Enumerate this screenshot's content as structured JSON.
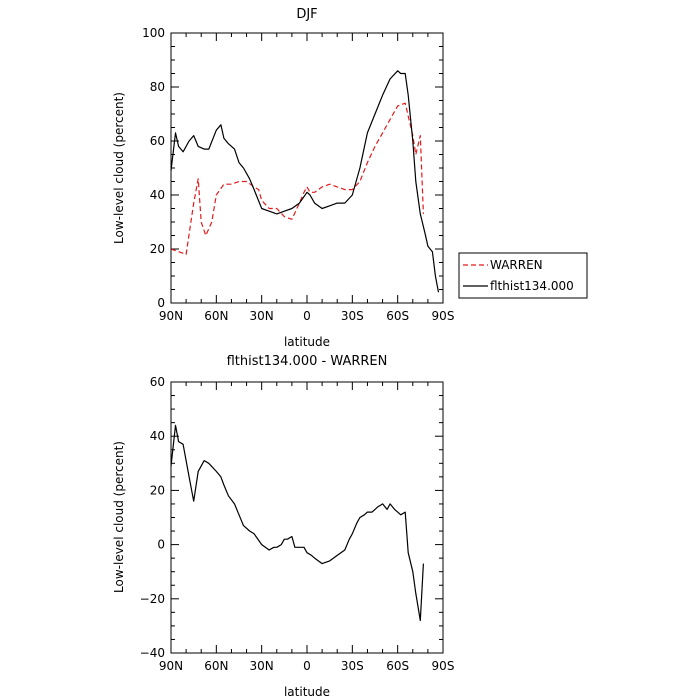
{
  "chart_data": [
    {
      "type": "line",
      "title": "DJF",
      "xlabel": "latitude",
      "ylabel": "Low-level cloud (percent)",
      "xlim": [
        90,
        -90
      ],
      "ylim": [
        0,
        100
      ],
      "xticks": [
        90,
        60,
        30,
        0,
        -30,
        -60,
        -90
      ],
      "xtick_labels": [
        "90N",
        "60N",
        "30N",
        "0",
        "30S",
        "60S",
        "90S"
      ],
      "yticks": [
        0,
        20,
        40,
        60,
        80,
        100
      ],
      "ytick_labels": [
        "0",
        "20",
        "40",
        "60",
        "80",
        "100"
      ],
      "legend": {
        "placement": "outside-right",
        "entries": [
          "WARREN",
          "flthist134.000"
        ]
      },
      "series": [
        {
          "name": "WARREN",
          "color": "#e41a1c",
          "style": "dashed",
          "x": [
            90,
            85,
            80,
            75,
            72,
            70,
            67,
            63,
            60,
            55,
            50,
            45,
            40,
            35,
            32,
            30,
            25,
            20,
            15,
            10,
            5,
            2,
            0,
            -2,
            -5,
            -10,
            -15,
            -20,
            -25,
            -30,
            -35,
            -40,
            -45,
            -50,
            -55,
            -60,
            -65,
            -70,
            -72,
            -75,
            -77
          ],
          "y": [
            20,
            19,
            18,
            37,
            46,
            30,
            25,
            30,
            40,
            44,
            44,
            45,
            45,
            43,
            42,
            38,
            35,
            35,
            32,
            31,
            37,
            41,
            43,
            41,
            41,
            43,
            44,
            43,
            42,
            42,
            45,
            52,
            58,
            63,
            68,
            73,
            74,
            62,
            55,
            62,
            33
          ]
        },
        {
          "name": "flthist134.000",
          "color": "#000000",
          "style": "solid",
          "x": [
            90,
            87,
            85,
            82,
            78,
            75,
            72,
            68,
            65,
            60,
            57,
            55,
            52,
            48,
            45,
            42,
            38,
            35,
            30,
            25,
            20,
            15,
            10,
            5,
            0,
            -2,
            -5,
            -10,
            -15,
            -20,
            -25,
            -30,
            -35,
            -40,
            -45,
            -50,
            -55,
            -60,
            -62,
            -65,
            -67,
            -70,
            -72,
            -75,
            -78,
            -80,
            -83,
            -85,
            -87
          ],
          "y": [
            49,
            63,
            58,
            56,
            60,
            62,
            58,
            57,
            57,
            64,
            66,
            61,
            59,
            57,
            52,
            50,
            46,
            42,
            35,
            34,
            33,
            34,
            35,
            37,
            41,
            40,
            37,
            35,
            36,
            37,
            37,
            40,
            50,
            63,
            70,
            77,
            83,
            86,
            85,
            85,
            77,
            60,
            45,
            33,
            26,
            21,
            19,
            10,
            4
          ]
        }
      ]
    },
    {
      "type": "line",
      "title": "flthist134.000 - WARREN",
      "xlabel": "latitude",
      "ylabel": "Low-level cloud (percent)",
      "xlim": [
        90,
        -90
      ],
      "ylim": [
        -40,
        60
      ],
      "xticks": [
        90,
        60,
        30,
        0,
        -30,
        -60,
        -90
      ],
      "xtick_labels": [
        "90N",
        "60N",
        "30N",
        "0",
        "30S",
        "60S",
        "90S"
      ],
      "yticks": [
        -40,
        -20,
        0,
        20,
        40,
        60
      ],
      "ytick_labels": [
        "−40",
        "−20",
        "0",
        "20",
        "40",
        "60"
      ],
      "series": [
        {
          "color": "#000000",
          "style": "solid",
          "x": [
            90,
            87,
            85,
            82,
            78,
            75,
            72,
            68,
            65,
            60,
            57,
            55,
            52,
            48,
            45,
            42,
            38,
            35,
            30,
            25,
            22,
            20,
            17,
            15,
            13,
            10,
            8,
            5,
            2,
            0,
            -3,
            -5,
            -10,
            -15,
            -20,
            -25,
            -28,
            -30,
            -33,
            -35,
            -38,
            -40,
            -43,
            -45,
            -47,
            -50,
            -53,
            -55,
            -58,
            -60,
            -62,
            -65,
            -67,
            -70,
            -72,
            -75,
            -77
          ],
          "y": [
            29,
            44,
            38,
            37,
            25,
            16,
            27,
            31,
            30,
            27,
            25,
            22,
            18,
            15,
            11,
            7,
            5,
            4,
            0,
            -2,
            -1,
            -1,
            0,
            2,
            2,
            3,
            -1,
            -1,
            -1,
            -3,
            -4,
            -5,
            -7,
            -6,
            -4,
            -2,
            2,
            4,
            8,
            10,
            11,
            12,
            12,
            13,
            14,
            15,
            13,
            15,
            13,
            12,
            11,
            12,
            -3,
            -10,
            -18,
            -28,
            -7
          ]
        }
      ]
    }
  ]
}
